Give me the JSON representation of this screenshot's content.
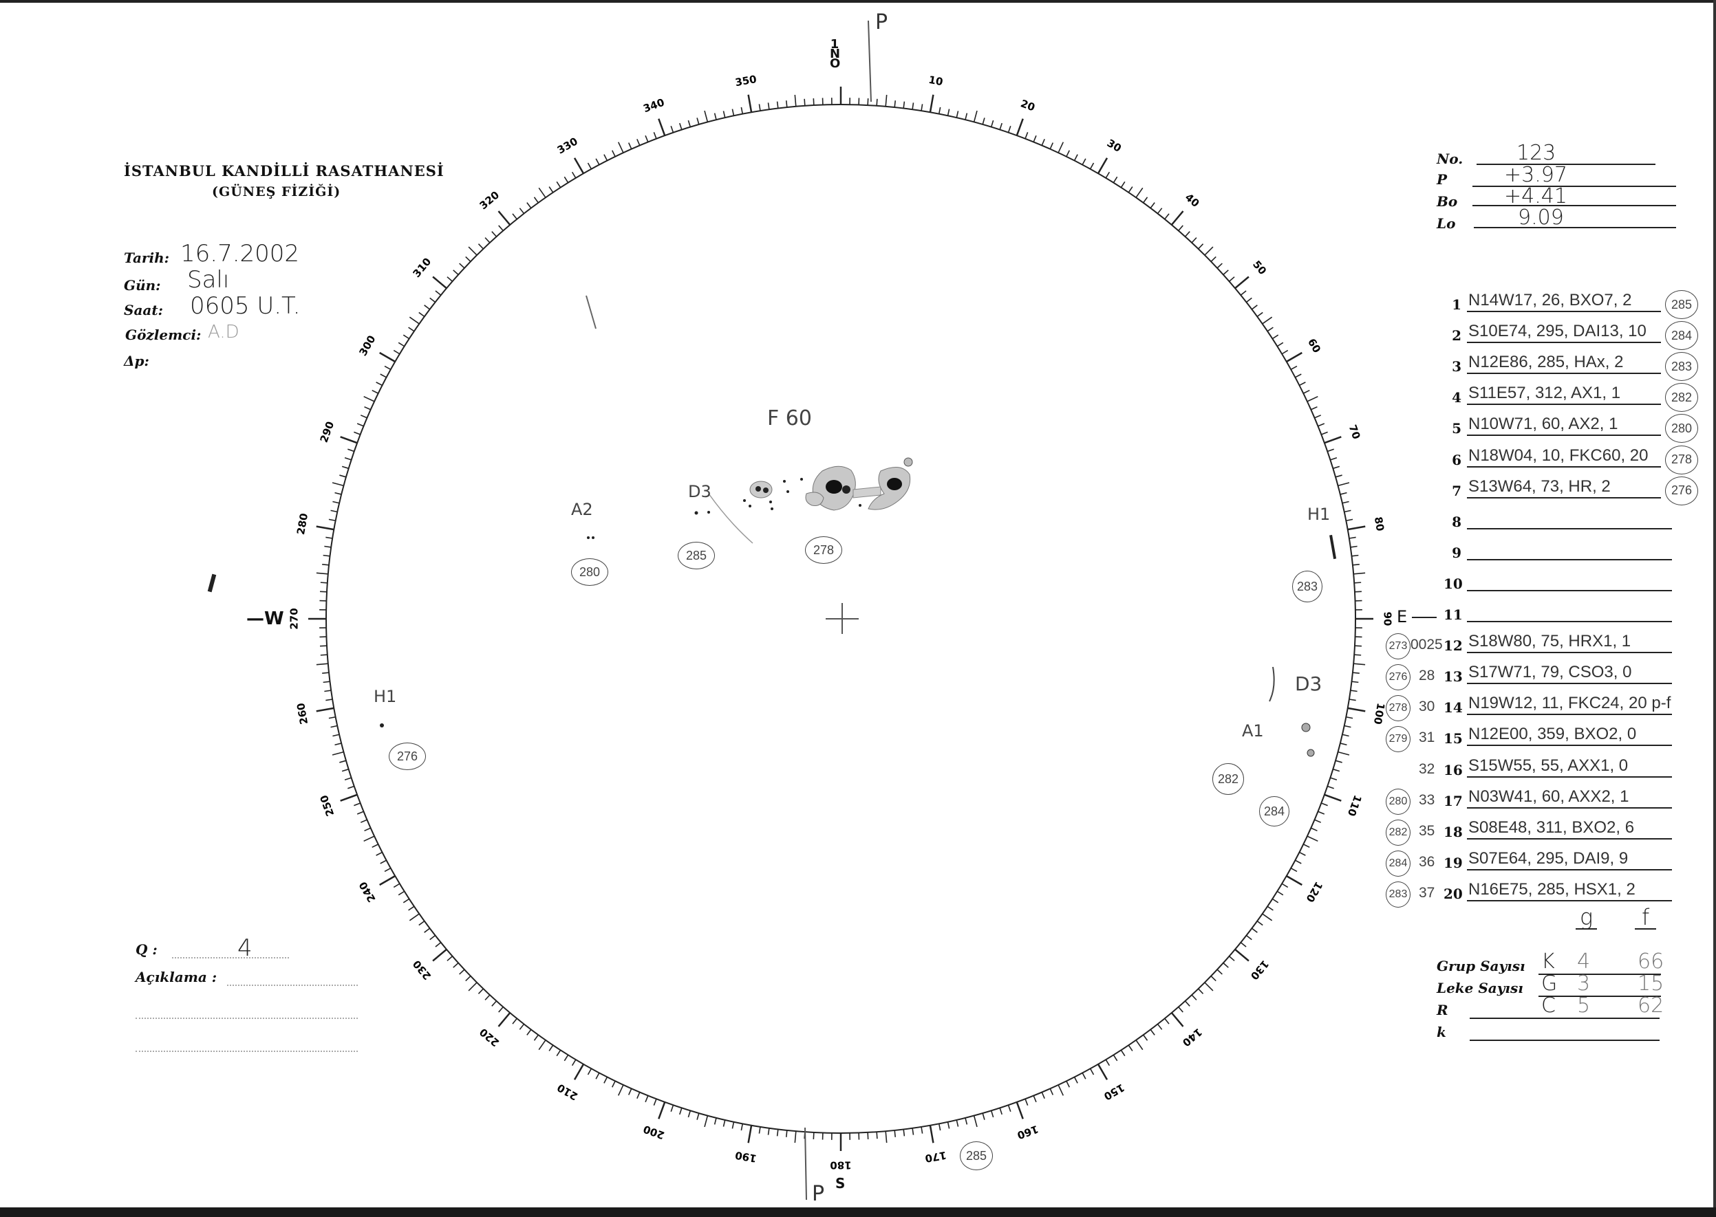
{
  "header": {
    "institution": "İSTANBUL KANDİLLİ RASATHANESİ",
    "department": "(GÜNEŞ FİZİĞİ)"
  },
  "observation": {
    "date_label": "Tarih:",
    "date_value": "16.7.2002",
    "day_label": "Gün:",
    "day_value": "Salı",
    "time_label": "Saat:",
    "time_value": "0605 U.T.",
    "observer_label": "Gözlemci:",
    "observer_value": "A.D",
    "dp_label": "Δp:"
  },
  "ephemeris": {
    "no_label": "No.",
    "no_value": "123",
    "p_label": "P",
    "p_value": "+3.97",
    "bo_label": "Bo",
    "bo_value": "+4.41",
    "lo_label": "Lo",
    "lo_value": "9.09"
  },
  "groups": [
    {
      "n": "1",
      "text": "N14W17, 26, BXO7, 2",
      "circled": "285",
      "left_circled": "",
      "left_note": ""
    },
    {
      "n": "2",
      "text": "S10E74, 295, DAI13, 10",
      "circled": "284",
      "left_circled": "",
      "left_note": ""
    },
    {
      "n": "3",
      "text": "N12E86, 285, HAx, 2",
      "circled": "283",
      "left_circled": "",
      "left_note": ""
    },
    {
      "n": "4",
      "text": "S11E57, 312, AX1, 1",
      "circled": "282",
      "left_circled": "",
      "left_note": ""
    },
    {
      "n": "5",
      "text": "N10W71, 60, AX2, 1",
      "circled": "280",
      "left_circled": "",
      "left_note": ""
    },
    {
      "n": "6",
      "text": "N18W04, 10, FKC60, 20",
      "circled": "278",
      "left_circled": "",
      "left_note": ""
    },
    {
      "n": "7",
      "text": "S13W64, 73, HR, 2",
      "circled": "276",
      "left_circled": "",
      "left_note": ""
    },
    {
      "n": "8",
      "text": "",
      "circled": "",
      "left_circled": "",
      "left_note": ""
    },
    {
      "n": "9",
      "text": "",
      "circled": "",
      "left_circled": "",
      "left_note": ""
    },
    {
      "n": "10",
      "text": "",
      "circled": "",
      "left_circled": "",
      "left_note": ""
    },
    {
      "n": "11",
      "text": "",
      "circled": "",
      "left_circled": "",
      "left_note": ""
    },
    {
      "n": "12",
      "text": "S18W80, 75, HRX1, 1",
      "circled": "",
      "left_circled": "273",
      "left_note": "0025"
    },
    {
      "n": "13",
      "text": "S17W71, 79, CSO3, 0",
      "circled": "",
      "left_circled": "276",
      "left_note": "28"
    },
    {
      "n": "14",
      "text": "N19W12, 11, FKC24, 20 p-f",
      "circled": "",
      "left_circled": "278",
      "left_note": "30"
    },
    {
      "n": "15",
      "text": "N12E00, 359, BXO2, 0",
      "circled": "",
      "left_circled": "279",
      "left_note": "31"
    },
    {
      "n": "16",
      "text": "S15W55, 55, AXX1, 0",
      "circled": "",
      "left_circled": "",
      "left_note": "32"
    },
    {
      "n": "17",
      "text": "N03W41, 60, AXX2, 1",
      "circled": "",
      "left_circled": "280",
      "left_note": "33"
    },
    {
      "n": "18",
      "text": "S08E48, 311, BXO2, 6",
      "circled": "",
      "left_circled": "282",
      "left_note": "35"
    },
    {
      "n": "19",
      "text": "S07E64, 295, DAI9, 9",
      "circled": "",
      "left_circled": "284",
      "left_note": "36"
    },
    {
      "n": "20",
      "text": "N16E75, 285, HSX1, 2",
      "circled": "",
      "left_circled": "283",
      "left_note": "37"
    }
  ],
  "gf_header": {
    "g": "g",
    "f": "f"
  },
  "totals": {
    "group_label": "Grup Sayısı",
    "group_values": [
      "K",
      "4",
      "66"
    ],
    "spot_label": "Leke Sayısı",
    "spot_values": [
      "G",
      "3",
      "15"
    ],
    "r_label": "R",
    "r_values": [
      "C",
      "5",
      "62"
    ],
    "k_label": "k"
  },
  "quality": {
    "q_label": "Q :",
    "q_value": "4",
    "remark_label": "Açıklama :"
  },
  "dial": {
    "labels": [
      "10",
      "20",
      "30",
      "40",
      "50",
      "60",
      "70",
      "80",
      "90",
      "100",
      "110",
      "120",
      "130",
      "140",
      "150",
      "160",
      "170",
      "180",
      "190",
      "200",
      "210",
      "220",
      "230",
      "240",
      "250",
      "260",
      "270",
      "280",
      "290",
      "300",
      "310",
      "320",
      "330",
      "340",
      "350"
    ],
    "north_mark": "1 N O",
    "east_mark": "E",
    "east_row_mark": "11",
    "south_mark": "S",
    "west_mark": "W",
    "p_top": "P",
    "p_bottom": "P"
  },
  "disk_annotations": {
    "f60": "F 60",
    "d3": "D3",
    "a2": "A2",
    "h1_right": "H1",
    "h1_left": "H1",
    "d_right": "D3",
    "a1": "A1",
    "c280": "280",
    "c285": "285",
    "c278": "278",
    "c283": "283",
    "c276": "276",
    "c282": "282",
    "c284": "284",
    "c_bottom": "285"
  }
}
